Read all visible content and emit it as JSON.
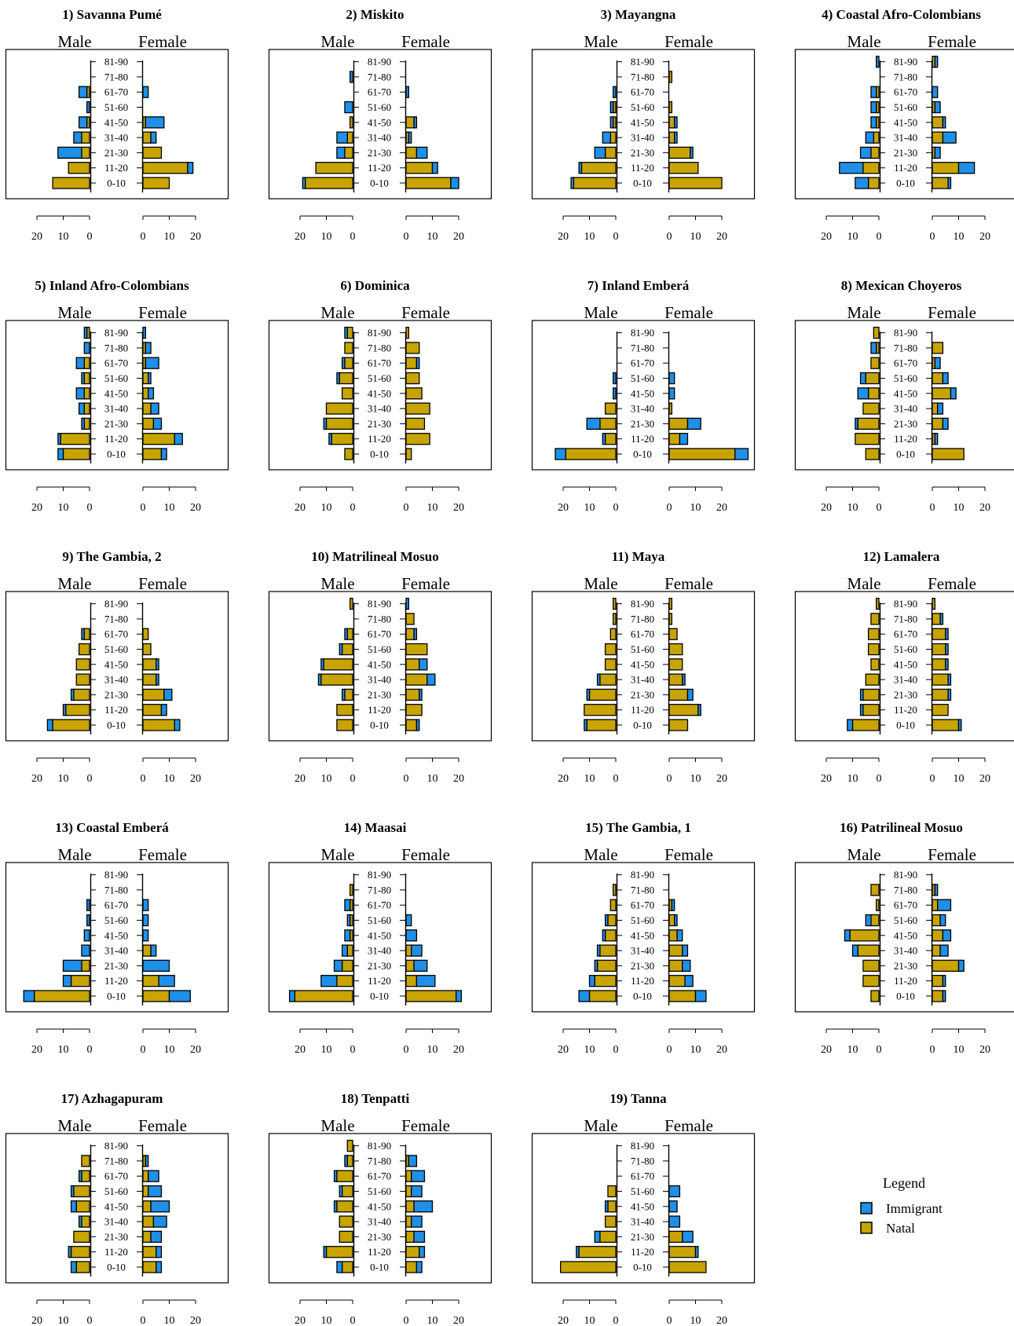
{
  "chart_data": {
    "type": "bar",
    "layout": "population-pyramid-grid",
    "age_groups": [
      "0-10",
      "11-20",
      "21-30",
      "31-40",
      "41-50",
      "51-60",
      "61-70",
      "71-80",
      "81-90"
    ],
    "sides": {
      "left": "Male",
      "right": "Female"
    },
    "axis": {
      "ticks": [
        20,
        10,
        0
      ],
      "xlim_each_side": [
        0,
        30
      ]
    },
    "colors": {
      "Immigrant": "#1f8fe8",
      "Natal": "#c8a400",
      "outline": "#000000"
    },
    "legend": {
      "title": "Legend",
      "position": "bottom-right",
      "items": [
        "Immigrant",
        "Natal"
      ]
    },
    "panels": [
      {
        "title": "1) Savanna Pumé",
        "male_natal": [
          14,
          8,
          3,
          3,
          1,
          0,
          1,
          0,
          0
        ],
        "male_imm": [
          0,
          0,
          9,
          3,
          3,
          1,
          3,
          0,
          0
        ],
        "female_natal": [
          10,
          17,
          7,
          3,
          1,
          0,
          0,
          0,
          0
        ],
        "female_imm": [
          0,
          2,
          0,
          2,
          7,
          0,
          2,
          0,
          0
        ]
      },
      {
        "title": "2) Miskito",
        "male_natal": [
          18,
          14,
          3,
          2,
          1,
          0,
          0,
          0,
          0
        ],
        "male_imm": [
          1,
          0,
          3,
          4,
          0,
          3,
          0,
          1,
          0
        ],
        "female_natal": [
          17,
          10,
          4,
          1,
          3,
          0,
          0,
          0,
          0
        ],
        "female_imm": [
          3,
          2,
          4,
          1,
          1,
          0,
          1,
          0,
          0
        ]
      },
      {
        "title": "3) Mayangna",
        "male_natal": [
          16,
          13,
          4,
          2,
          1,
          1,
          0,
          0,
          0
        ],
        "male_imm": [
          1,
          1,
          4,
          3,
          1,
          1,
          1,
          0,
          0
        ],
        "female_natal": [
          20,
          11,
          8,
          2,
          2,
          1,
          0,
          1,
          0
        ],
        "female_imm": [
          0,
          0,
          1,
          1,
          1,
          0,
          0,
          0,
          0
        ]
      },
      {
        "title": "4) Coastal Afro-Colombians",
        "male_natal": [
          4,
          6,
          3,
          2,
          1,
          1,
          1,
          0,
          0
        ],
        "male_imm": [
          5,
          9,
          4,
          3,
          2,
          2,
          2,
          0,
          1
        ],
        "female_natal": [
          6,
          10,
          1,
          4,
          4,
          1,
          0,
          0,
          1
        ],
        "female_imm": [
          1,
          6,
          2,
          5,
          1,
          2,
          2,
          0,
          1
        ]
      },
      {
        "title": "5) Inland Afro-Colombians",
        "male_natal": [
          10,
          11,
          2,
          2,
          2,
          2,
          2,
          0,
          1
        ],
        "male_imm": [
          2,
          1,
          1,
          2,
          3,
          1,
          3,
          2,
          1
        ],
        "female_natal": [
          7,
          12,
          4,
          3,
          2,
          2,
          1,
          1,
          0
        ],
        "female_imm": [
          2,
          3,
          3,
          3,
          2,
          1,
          5,
          2,
          1
        ]
      },
      {
        "title": "6) Dominica",
        "male_natal": [
          3,
          8,
          10,
          10,
          4,
          5,
          3,
          3,
          2
        ],
        "male_imm": [
          0,
          1,
          1,
          0,
          0,
          1,
          1,
          0,
          1
        ],
        "female_natal": [
          2,
          9,
          7,
          9,
          6,
          5,
          4,
          5,
          1
        ],
        "female_imm": [
          0,
          0,
          0,
          0,
          0,
          0,
          1,
          0,
          0
        ]
      },
      {
        "title": "7) Inland Emberá",
        "male_natal": [
          19,
          4,
          6,
          4,
          0,
          0,
          0,
          0,
          0
        ],
        "male_imm": [
          4,
          1,
          5,
          0,
          1,
          1,
          0,
          0,
          0
        ],
        "female_natal": [
          25,
          4,
          7,
          1,
          0,
          0,
          0,
          0,
          0
        ],
        "female_imm": [
          5,
          3,
          5,
          0,
          2,
          2,
          0,
          0,
          0
        ]
      },
      {
        "title": "8) Mexican Choyeros",
        "male_natal": [
          5,
          9,
          8,
          6,
          4,
          5,
          3,
          1,
          2
        ],
        "male_imm": [
          0,
          0,
          1,
          0,
          4,
          2,
          0,
          2,
          0
        ],
        "female_natal": [
          12,
          1,
          4,
          2,
          7,
          4,
          1,
          4,
          0
        ],
        "female_imm": [
          0,
          1,
          2,
          2,
          2,
          2,
          2,
          0,
          0
        ]
      },
      {
        "title": "9) The Gambia, 2",
        "male_natal": [
          14,
          9,
          6,
          5,
          5,
          4,
          2,
          0,
          0
        ],
        "male_imm": [
          2,
          1,
          1,
          0,
          0,
          0,
          1,
          0,
          0
        ],
        "female_natal": [
          12,
          7,
          8,
          5,
          5,
          3,
          2,
          0,
          0
        ],
        "female_imm": [
          2,
          2,
          3,
          1,
          1,
          0,
          0,
          0,
          0
        ]
      },
      {
        "title": "10) Matrilineal Mosuo",
        "male_natal": [
          6,
          6,
          3,
          12,
          11,
          4,
          2,
          0,
          1
        ],
        "male_imm": [
          0,
          0,
          1,
          1,
          1,
          1,
          1,
          0,
          0
        ],
        "female_natal": [
          4,
          6,
          5,
          8,
          5,
          8,
          3,
          3,
          0
        ],
        "female_imm": [
          1,
          0,
          1,
          3,
          3,
          0,
          1,
          0,
          1
        ]
      },
      {
        "title": "11) Maya",
        "male_natal": [
          11,
          12,
          10,
          6,
          4,
          4,
          2,
          1,
          1
        ],
        "male_imm": [
          1,
          0,
          1,
          1,
          0,
          0,
          0,
          0,
          0
        ],
        "female_natal": [
          7,
          11,
          7,
          5,
          5,
          5,
          3,
          1,
          1
        ],
        "female_imm": [
          0,
          1,
          2,
          1,
          0,
          0,
          0,
          0,
          0
        ]
      },
      {
        "title": "12) Lamalera",
        "male_natal": [
          10,
          6,
          6,
          5,
          3,
          4,
          4,
          3,
          1
        ],
        "male_imm": [
          2,
          1,
          1,
          0,
          0,
          0,
          0,
          0,
          0
        ],
        "female_natal": [
          10,
          6,
          6,
          6,
          5,
          5,
          5,
          3,
          1
        ],
        "female_imm": [
          1,
          0,
          1,
          1,
          1,
          1,
          1,
          1,
          0
        ]
      },
      {
        "title": "13) Coastal Emberá",
        "male_natal": [
          21,
          7,
          3,
          0,
          0,
          0,
          0,
          0,
          0
        ],
        "male_imm": [
          4,
          3,
          7,
          3,
          2,
          1,
          1,
          0,
          0
        ],
        "female_natal": [
          10,
          6,
          0,
          3,
          0,
          0,
          0,
          0,
          0
        ],
        "female_imm": [
          8,
          6,
          10,
          2,
          2,
          2,
          2,
          0,
          0
        ]
      },
      {
        "title": "14) Maasai",
        "male_natal": [
          22,
          6,
          4,
          2,
          1,
          1,
          1,
          1,
          0
        ],
        "male_imm": [
          2,
          6,
          3,
          2,
          2,
          1,
          2,
          0,
          0
        ],
        "female_natal": [
          19,
          4,
          3,
          2,
          0,
          0,
          0,
          0,
          0
        ],
        "female_imm": [
          2,
          7,
          5,
          4,
          4,
          2,
          0,
          0,
          0
        ]
      },
      {
        "title": "15) The Gambia, 1",
        "male_natal": [
          10,
          8,
          7,
          6,
          4,
          3,
          2,
          1,
          0
        ],
        "male_imm": [
          4,
          2,
          1,
          1,
          1,
          1,
          0,
          0,
          0
        ],
        "female_natal": [
          10,
          6,
          5,
          5,
          3,
          2,
          1,
          0,
          0
        ],
        "female_imm": [
          4,
          3,
          3,
          2,
          2,
          1,
          1,
          0,
          0
        ]
      },
      {
        "title": "16) Patrilineal Mosuo",
        "male_natal": [
          3,
          6,
          6,
          8,
          11,
          3,
          1,
          3,
          0
        ],
        "male_imm": [
          0,
          0,
          0,
          2,
          2,
          2,
          0,
          0,
          0
        ],
        "female_natal": [
          4,
          4,
          10,
          3,
          4,
          3,
          2,
          1,
          0
        ],
        "female_imm": [
          1,
          1,
          2,
          3,
          3,
          2,
          5,
          1,
          0
        ]
      },
      {
        "title": "17) Azhagapuram",
        "male_natal": [
          5,
          7,
          6,
          3,
          5,
          6,
          3,
          3,
          0
        ],
        "male_imm": [
          2,
          1,
          0,
          1,
          2,
          1,
          1,
          0,
          0
        ],
        "female_natal": [
          5,
          5,
          3,
          4,
          3,
          2,
          2,
          1,
          0
        ],
        "female_imm": [
          2,
          2,
          4,
          5,
          7,
          5,
          4,
          1,
          0
        ]
      },
      {
        "title": "18) Tenpatti",
        "male_natal": [
          4,
          10,
          5,
          5,
          6,
          4,
          6,
          2,
          2
        ],
        "male_imm": [
          2,
          1,
          0,
          0,
          1,
          1,
          1,
          1,
          0
        ],
        "female_natal": [
          4,
          5,
          3,
          2,
          3,
          2,
          2,
          1,
          0
        ],
        "female_imm": [
          2,
          2,
          4,
          4,
          7,
          4,
          5,
          3,
          0
        ]
      },
      {
        "title": "19) Tanna",
        "male_natal": [
          21,
          14,
          6,
          4,
          3,
          3,
          0,
          0,
          0
        ],
        "male_imm": [
          0,
          1,
          2,
          0,
          1,
          0,
          0,
          0,
          0
        ],
        "female_natal": [
          14,
          10,
          5,
          0,
          0,
          0,
          0,
          0,
          0
        ],
        "female_imm": [
          0,
          1,
          4,
          4,
          3,
          4,
          0,
          0,
          0
        ]
      }
    ]
  }
}
